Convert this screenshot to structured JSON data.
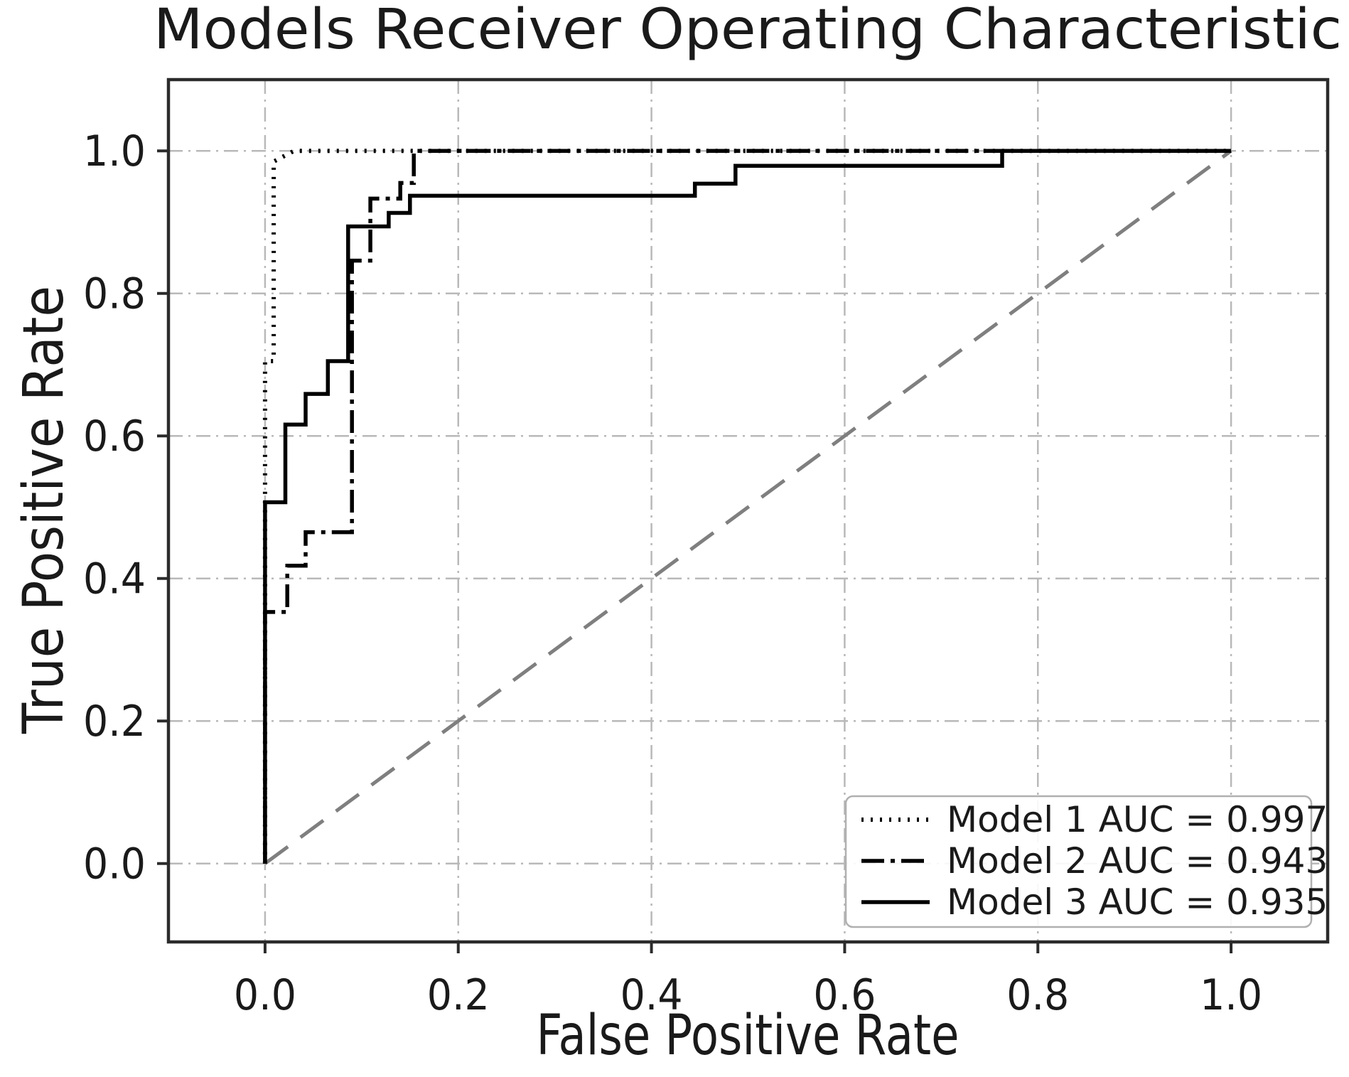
{
  "title": "Models Receiver Operating Characteristic",
  "chart_data": {
    "type": "line",
    "subtype": "roc-step-curves",
    "title": "Models Receiver Operating Characteristic",
    "xlabel": "False Positive Rate",
    "ylabel": "True Positive Rate",
    "xlim": [
      -0.1,
      1.1
    ],
    "ylim": [
      -0.11,
      1.1
    ],
    "grid": true,
    "grid_style": "dash-dot",
    "legend_position": "lower right",
    "xtick_values": [
      0.0,
      0.2,
      0.4,
      0.6,
      0.8,
      1.0
    ],
    "xtick_labels": [
      "0.0",
      "0.2",
      "0.4",
      "0.6",
      "0.8",
      "1.0"
    ],
    "ytick_values": [
      0.0,
      0.2,
      0.4,
      0.6,
      0.8,
      1.0
    ],
    "ytick_labels": [
      "0.0",
      "0.2",
      "0.4",
      "0.6",
      "0.8",
      "1.0"
    ],
    "series": [
      {
        "name": "Model 1",
        "label": "Model 1 AUC = 0.997",
        "auc": 0.997,
        "line_style": "dotted",
        "color": "#000000",
        "points": [
          [
            0,
            0
          ],
          [
            0,
            0.705
          ],
          [
            0.009,
            0.705
          ],
          [
            0.009,
            0.985
          ],
          [
            0.03,
            1.0
          ],
          [
            1,
            1
          ]
        ]
      },
      {
        "name": "Model 2",
        "label": "Model 2 AUC = 0.943",
        "auc": 0.943,
        "line_style": "dashdot",
        "color": "#000000",
        "points": [
          [
            0,
            0
          ],
          [
            0,
            0.353
          ],
          [
            0.023,
            0.353
          ],
          [
            0.023,
            0.418
          ],
          [
            0.042,
            0.418
          ],
          [
            0.042,
            0.465
          ],
          [
            0.09,
            0.465
          ],
          [
            0.09,
            0.846
          ],
          [
            0.109,
            0.846
          ],
          [
            0.109,
            0.933
          ],
          [
            0.14,
            0.933
          ],
          [
            0.14,
            0.955
          ],
          [
            0.154,
            0.955
          ],
          [
            0.154,
            1.0
          ],
          [
            1,
            1
          ]
        ]
      },
      {
        "name": "Model 3",
        "label": "Model 3 AUC = 0.935",
        "auc": 0.935,
        "line_style": "solid",
        "color": "#000000",
        "points": [
          [
            0,
            0
          ],
          [
            0,
            0.507
          ],
          [
            0.021,
            0.507
          ],
          [
            0.021,
            0.616
          ],
          [
            0.042,
            0.616
          ],
          [
            0.042,
            0.659
          ],
          [
            0.065,
            0.659
          ],
          [
            0.065,
            0.705
          ],
          [
            0.086,
            0.705
          ],
          [
            0.086,
            0.894
          ],
          [
            0.128,
            0.894
          ],
          [
            0.128,
            0.913
          ],
          [
            0.15,
            0.913
          ],
          [
            0.15,
            0.937
          ],
          [
            0.445,
            0.937
          ],
          [
            0.445,
            0.954
          ],
          [
            0.487,
            0.954
          ],
          [
            0.487,
            0.979
          ],
          [
            0.763,
            0.979
          ],
          [
            0.763,
            1.0
          ],
          [
            1,
            1
          ]
        ]
      }
    ],
    "reference_line": {
      "name": "chance-diagonal",
      "line_style": "dashed",
      "color": "#7f7f7f",
      "points": [
        [
          0,
          0
        ],
        [
          1,
          1
        ]
      ]
    }
  },
  "colors": {
    "curve": "#000000",
    "grid": "#b9b9b9",
    "spine": "#2b2b2b",
    "diagonal": "#7f7f7f",
    "tick_label": "#1a1a1a",
    "legend_border": "#b0b0b0",
    "legend_bg": "#ffffff"
  }
}
